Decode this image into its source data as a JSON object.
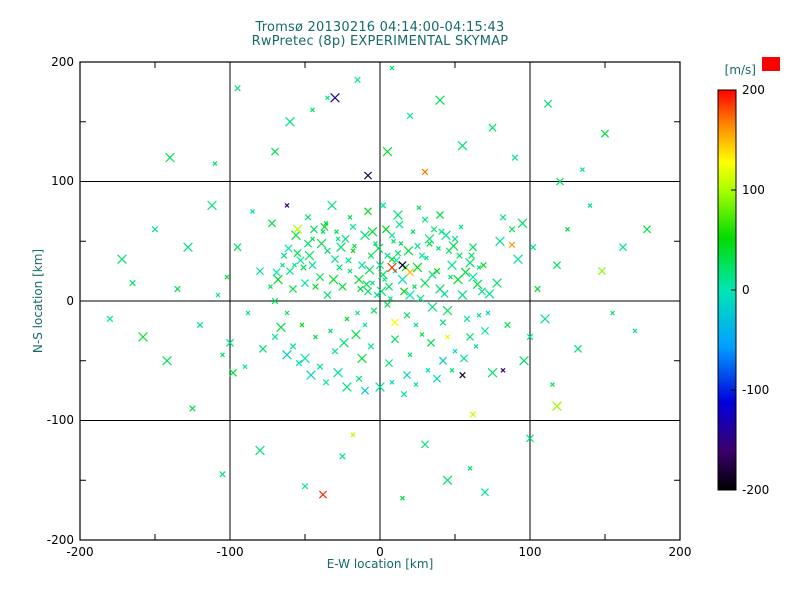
{
  "colors": {
    "background": "#ffffff",
    "title_text": "#166a6a",
    "tick_text": "#000000",
    "grid": "#000000",
    "swatch_red": "#ff0000"
  },
  "chart_data": {
    "type": "scatter",
    "marker": "x",
    "title_line1": "Tromsø 20130216 04:14:00-04:15:43",
    "title_line2": "RwPretec (8p) EXPERIMENTAL SKYMAP",
    "xlabel": "E-W location [km]",
    "ylabel": "N-S location [km]",
    "xlim": [
      -200,
      200
    ],
    "ylim": [
      -200,
      200
    ],
    "grid": true,
    "grid_values": [
      -100,
      0,
      100
    ],
    "minor_tick_values": [
      -150,
      -50,
      50,
      150
    ],
    "x_ticks": [
      "-200",
      "-100",
      "0",
      "100",
      "200"
    ],
    "y_ticks": [
      "200",
      "100",
      "0",
      "-100",
      "-200"
    ],
    "colorbar": {
      "label": "[m/s]",
      "position": "right",
      "min": -200,
      "max": 200,
      "ticks": [
        "200",
        "100",
        "0",
        "-100",
        "-200"
      ],
      "stops": [
        [
          0.0,
          "#000000"
        ],
        [
          0.1,
          "#3c006e"
        ],
        [
          0.22,
          "#0000dc"
        ],
        [
          0.36,
          "#00a0ff"
        ],
        [
          0.5,
          "#00e6b4"
        ],
        [
          0.63,
          "#00dc00"
        ],
        [
          0.75,
          "#aaff00"
        ],
        [
          0.82,
          "#ffff00"
        ],
        [
          0.91,
          "#ff8c00"
        ],
        [
          1.0,
          "#ff0000"
        ]
      ]
    },
    "points_format": "[x_km, y_km, velocity_ms]",
    "points": [
      [
        -5,
        15,
        10
      ],
      [
        2,
        22,
        25
      ],
      [
        -12,
        30,
        5
      ],
      [
        8,
        35,
        40
      ],
      [
        -20,
        25,
        15
      ],
      [
        15,
        18,
        -5
      ],
      [
        -8,
        8,
        20
      ],
      [
        5,
        -3,
        30
      ],
      [
        -15,
        -10,
        10
      ],
      [
        20,
        5,
        0
      ],
      [
        -25,
        12,
        35
      ],
      [
        12,
        40,
        20
      ],
      [
        -3,
        48,
        15
      ],
      [
        25,
        28,
        45
      ],
      [
        -30,
        35,
        10
      ],
      [
        18,
        -12,
        25
      ],
      [
        -10,
        -20,
        5
      ],
      [
        30,
        15,
        30
      ],
      [
        -35,
        5,
        20
      ],
      [
        8,
        55,
        10
      ],
      [
        -18,
        42,
        50
      ],
      [
        35,
        -5,
        15
      ],
      [
        -40,
        20,
        25
      ],
      [
        28,
        38,
        5
      ],
      [
        -22,
        -15,
        40
      ],
      [
        40,
        10,
        20
      ],
      [
        -45,
        30,
        10
      ],
      [
        33,
        48,
        30
      ],
      [
        -28,
        52,
        15
      ],
      [
        45,
        -8,
        25
      ],
      [
        -50,
        15,
        5
      ],
      [
        38,
        25,
        45
      ],
      [
        -33,
        -25,
        20
      ],
      [
        48,
        30,
        10
      ],
      [
        -55,
        40,
        30
      ],
      [
        42,
        -18,
        15
      ],
      [
        -38,
        58,
        25
      ],
      [
        52,
        18,
        40
      ],
      [
        -60,
        25,
        10
      ],
      [
        46,
        42,
        20
      ],
      [
        -43,
        -30,
        35
      ],
      [
        55,
        5,
        15
      ],
      [
        -48,
        48,
        25
      ],
      [
        58,
        -15,
        10
      ],
      [
        -52,
        -20,
        45
      ],
      [
        60,
        32,
        20
      ],
      [
        -58,
        10,
        30
      ],
      [
        50,
        52,
        15
      ],
      [
        -62,
        -10,
        25
      ],
      [
        62,
        20,
        5
      ],
      [
        0,
        30,
        18
      ],
      [
        -6,
        38,
        28
      ],
      [
        10,
        25,
        8
      ],
      [
        -14,
        18,
        38
      ],
      [
        6,
        12,
        22
      ],
      [
        -2,
        5,
        12
      ],
      [
        14,
        48,
        32
      ],
      [
        -10,
        55,
        18
      ],
      [
        4,
        60,
        42
      ],
      [
        -18,
        62,
        8
      ],
      [
        22,
        58,
        28
      ],
      [
        -26,
        45,
        18
      ],
      [
        16,
        8,
        48
      ],
      [
        -4,
        -8,
        28
      ],
      [
        24,
        -20,
        12
      ],
      [
        -16,
        -28,
        32
      ],
      [
        10,
        -32,
        22
      ],
      [
        -6,
        -38,
        8
      ],
      [
        28,
        -28,
        38
      ],
      [
        -24,
        -35,
        18
      ],
      [
        34,
        -35,
        28
      ],
      [
        -30,
        -42,
        12
      ],
      [
        20,
        -45,
        22
      ],
      [
        -12,
        -48,
        32
      ],
      [
        6,
        -52,
        18
      ],
      [
        36,
        60,
        20
      ],
      [
        -36,
        65,
        35
      ],
      [
        44,
        55,
        10
      ],
      [
        -44,
        60,
        25
      ],
      [
        30,
        68,
        15
      ],
      [
        -20,
        70,
        30
      ],
      [
        12,
        72,
        20
      ],
      [
        -8,
        75,
        45
      ],
      [
        2,
        80,
        10
      ],
      [
        26,
        78,
        25
      ],
      [
        -32,
        80,
        15
      ],
      [
        40,
        72,
        35
      ],
      [
        -48,
        70,
        20
      ],
      [
        54,
        62,
        10
      ],
      [
        -56,
        55,
        30
      ],
      [
        62,
        45,
        25
      ],
      [
        -64,
        38,
        15
      ],
      [
        66,
        28,
        20
      ],
      [
        -68,
        18,
        40
      ],
      [
        68,
        8,
        10
      ],
      [
        -70,
        0,
        25
      ],
      [
        66,
        -12,
        15
      ],
      [
        -66,
        -22,
        30
      ],
      [
        60,
        -30,
        20
      ],
      [
        -58,
        -38,
        10
      ],
      [
        50,
        -42,
        -10
      ],
      [
        -50,
        -48,
        5
      ],
      [
        42,
        -50,
        -20
      ],
      [
        -40,
        -55,
        15
      ],
      [
        32,
        -58,
        -5
      ],
      [
        -28,
        -60,
        10
      ],
      [
        18,
        -62,
        -15
      ],
      [
        -14,
        -65,
        20
      ],
      [
        8,
        -68,
        -10
      ],
      [
        0,
        -72,
        5
      ],
      [
        -10,
        -75,
        -25
      ],
      [
        16,
        -78,
        10
      ],
      [
        24,
        -70,
        -5
      ],
      [
        -22,
        -72,
        15
      ],
      [
        38,
        -65,
        -10
      ],
      [
        -36,
        -68,
        5
      ],
      [
        48,
        -58,
        20
      ],
      [
        -46,
        -62,
        -15
      ],
      [
        56,
        -48,
        10
      ],
      [
        -54,
        -52,
        -5
      ],
      [
        64,
        -38,
        15
      ],
      [
        -62,
        -45,
        -20
      ],
      [
        70,
        -25,
        5
      ],
      [
        -70,
        -30,
        10
      ],
      [
        72,
        -10,
        -15
      ],
      [
        78,
        15,
        20
      ],
      [
        -80,
        25,
        10
      ],
      [
        85,
        -20,
        30
      ],
      [
        -88,
        -10,
        15
      ],
      [
        92,
        35,
        5
      ],
      [
        -95,
        45,
        25
      ],
      [
        100,
        -30,
        15
      ],
      [
        -102,
        20,
        35
      ],
      [
        80,
        50,
        10
      ],
      [
        -78,
        -40,
        20
      ],
      [
        88,
        60,
        30
      ],
      [
        -90,
        -55,
        5
      ],
      [
        96,
        -50,
        25
      ],
      [
        -100,
        -35,
        15
      ],
      [
        105,
        10,
        40
      ],
      [
        -108,
        5,
        10
      ],
      [
        75,
        -60,
        20
      ],
      [
        -72,
        65,
        30
      ],
      [
        82,
        70,
        15
      ],
      [
        -85,
        75,
        5
      ],
      [
        95,
        65,
        25
      ],
      [
        -98,
        -60,
        35
      ],
      [
        102,
        45,
        10
      ],
      [
        -105,
        -45,
        20
      ],
      [
        110,
        -15,
        15
      ],
      [
        118,
        30,
        25
      ],
      [
        -120,
        -20,
        10
      ],
      [
        125,
        60,
        40
      ],
      [
        -128,
        45,
        15
      ],
      [
        132,
        -40,
        20
      ],
      [
        -135,
        10,
        30
      ],
      [
        140,
        80,
        10
      ],
      [
        -142,
        -50,
        25
      ],
      [
        148,
        25,
        90
      ],
      [
        -150,
        60,
        15
      ],
      [
        155,
        -10,
        20
      ],
      [
        -158,
        -30,
        35
      ],
      [
        162,
        45,
        10
      ],
      [
        -165,
        15,
        25
      ],
      [
        170,
        -25,
        15
      ],
      [
        -172,
        35,
        20
      ],
      [
        178,
        60,
        30
      ],
      [
        -180,
        -15,
        10
      ],
      [
        115,
        -70,
        25
      ],
      [
        -112,
        80,
        15
      ],
      [
        120,
        100,
        20
      ],
      [
        -125,
        -90,
        30
      ],
      [
        135,
        110,
        10
      ],
      [
        -140,
        120,
        25
      ],
      [
        150,
        140,
        35
      ],
      [
        -95,
        178,
        15
      ],
      [
        -35,
        170,
        10
      ],
      [
        40,
        168,
        25
      ],
      [
        112,
        165,
        20
      ],
      [
        -15,
        185,
        5
      ],
      [
        8,
        195,
        30
      ],
      [
        -60,
        150,
        15
      ],
      [
        75,
        145,
        20
      ],
      [
        20,
        155,
        10
      ],
      [
        -45,
        160,
        25
      ],
      [
        55,
        130,
        15
      ],
      [
        -70,
        125,
        30
      ],
      [
        90,
        120,
        10
      ],
      [
        -110,
        115,
        20
      ],
      [
        5,
        125,
        40
      ],
      [
        30,
        -120,
        15
      ],
      [
        -25,
        -130,
        10
      ],
      [
        60,
        -140,
        25
      ],
      [
        -80,
        -125,
        20
      ],
      [
        100,
        -115,
        15
      ],
      [
        -50,
        -155,
        5
      ],
      [
        15,
        -165,
        30
      ],
      [
        45,
        -150,
        20
      ],
      [
        70,
        -160,
        10
      ],
      [
        -105,
        -145,
        20
      ],
      [
        3,
        18,
        14
      ],
      [
        -7,
        26,
        24
      ],
      [
        11,
        34,
        6
      ],
      [
        -13,
        10,
        34
      ],
      [
        7,
        2,
        16
      ],
      [
        -1,
        44,
        26
      ],
      [
        17,
        28,
        44
      ],
      [
        -21,
        34,
        12
      ],
      [
        9,
        50,
        22
      ],
      [
        -5,
        58,
        36
      ],
      [
        13,
        64,
        8
      ],
      [
        -27,
        28,
        18
      ],
      [
        23,
        12,
        28
      ],
      [
        -31,
        18,
        38
      ],
      [
        27,
        2,
        14
      ],
      [
        -35,
        42,
        24
      ],
      [
        31,
        36,
        10
      ],
      [
        -39,
        48,
        30
      ],
      [
        35,
        22,
        20
      ],
      [
        -43,
        12,
        40
      ],
      [
        39,
        44,
        16
      ],
      [
        -47,
        38,
        26
      ],
      [
        43,
        6,
        12
      ],
      [
        -51,
        28,
        32
      ],
      [
        47,
        20,
        22
      ],
      [
        1,
        8,
        20
      ],
      [
        -9,
        14,
        30
      ],
      [
        5,
        38,
        10
      ],
      [
        -17,
        46,
        25
      ],
      [
        19,
        42,
        35
      ],
      [
        -23,
        52,
        15
      ],
      [
        25,
        46,
        5
      ],
      [
        -29,
        58,
        28
      ],
      [
        33,
        52,
        18
      ],
      [
        -37,
        62,
        38
      ],
      [
        41,
        58,
        12
      ],
      [
        -45,
        52,
        22
      ],
      [
        49,
        46,
        32
      ],
      [
        -53,
        34,
        8
      ],
      [
        53,
        38,
        26
      ],
      [
        -57,
        30,
        16
      ],
      [
        57,
        24,
        36
      ],
      [
        -61,
        44,
        6
      ],
      [
        61,
        38,
        24
      ],
      [
        -65,
        30,
        14
      ],
      [
        65,
        14,
        34
      ],
      [
        -69,
        24,
        4
      ],
      [
        69,
        30,
        44
      ],
      [
        -73,
        12,
        24
      ],
      [
        73,
        6,
        12
      ],
      [
        15,
        30,
        -190
      ],
      [
        55,
        -62,
        -185
      ],
      [
        82,
        -58,
        -160
      ],
      [
        8,
        28,
        185
      ],
      [
        20,
        24,
        150
      ],
      [
        88,
        47,
        160
      ],
      [
        -62,
        80,
        -155
      ],
      [
        -30,
        170,
        -140
      ],
      [
        -38,
        -162,
        190
      ],
      [
        62,
        -95,
        110
      ],
      [
        -18,
        -112,
        105
      ],
      [
        118,
        -88,
        95
      ],
      [
        -8,
        105,
        -170
      ],
      [
        30,
        108,
        170
      ],
      [
        45,
        -30,
        120
      ],
      [
        -55,
        60,
        100
      ],
      [
        10,
        -18,
        130
      ]
    ]
  }
}
